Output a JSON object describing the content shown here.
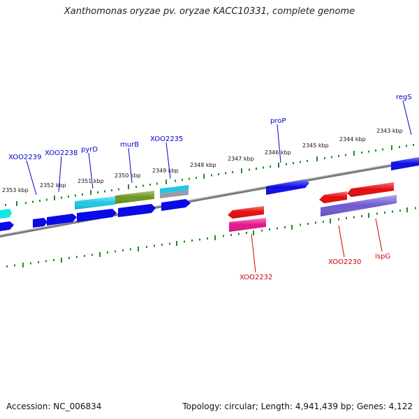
{
  "header": {
    "title": "Xanthomonas oryzae pv. oryzae KACC10331, complete genome"
  },
  "footer": {
    "accession": "Accession: NC_006834",
    "summary": "Topology: circular; Length: 4,941,439 bp; Genes: 4,122"
  },
  "colors": {
    "backbone": "#8a8a8a",
    "tick": "#1e8c1e",
    "forward_label": "#0000cc",
    "reverse_label": "#cc0000",
    "blue": "#0a0ae6",
    "cyan": "#1ec8e6",
    "green": "#6e961e",
    "red": "#e60a0a",
    "magenta": "#e6148c",
    "purple": "#6e5ad2",
    "aqua": "#14e6e6"
  },
  "axis": {
    "unit": "kbp",
    "ticks": [
      {
        "kbp": 2353,
        "label": "2353 kbp"
      },
      {
        "kbp": 2352,
        "label": "2352 kbp"
      },
      {
        "kbp": 2351,
        "label": "2351 kbp"
      },
      {
        "kbp": 2350,
        "label": "2350 kbp"
      },
      {
        "kbp": 2349,
        "label": "2349 kbp"
      },
      {
        "kbp": 2348,
        "label": "2348 kbp"
      },
      {
        "kbp": 2347,
        "label": "2347 kbp"
      },
      {
        "kbp": 2346,
        "label": "2346 kbp"
      },
      {
        "kbp": 2345,
        "label": "2345 kbp"
      },
      {
        "kbp": 2344,
        "label": "2344 kbp"
      },
      {
        "kbp": 2343,
        "label": "2343 kbp"
      }
    ]
  },
  "gene_labels": [
    {
      "name": "XOO2239",
      "strand": "forward"
    },
    {
      "name": "XOO2238",
      "strand": "forward"
    },
    {
      "name": "pyrD",
      "strand": "forward"
    },
    {
      "name": "murB",
      "strand": "forward"
    },
    {
      "name": "XOO2235",
      "strand": "forward"
    },
    {
      "name": "proP",
      "strand": "forward"
    },
    {
      "name": "regS",
      "strand": "forward"
    },
    {
      "name": "XOO2232",
      "strand": "reverse"
    },
    {
      "name": "XOO2230",
      "strand": "reverse"
    },
    {
      "name": "ispG",
      "strand": "reverse"
    }
  ]
}
